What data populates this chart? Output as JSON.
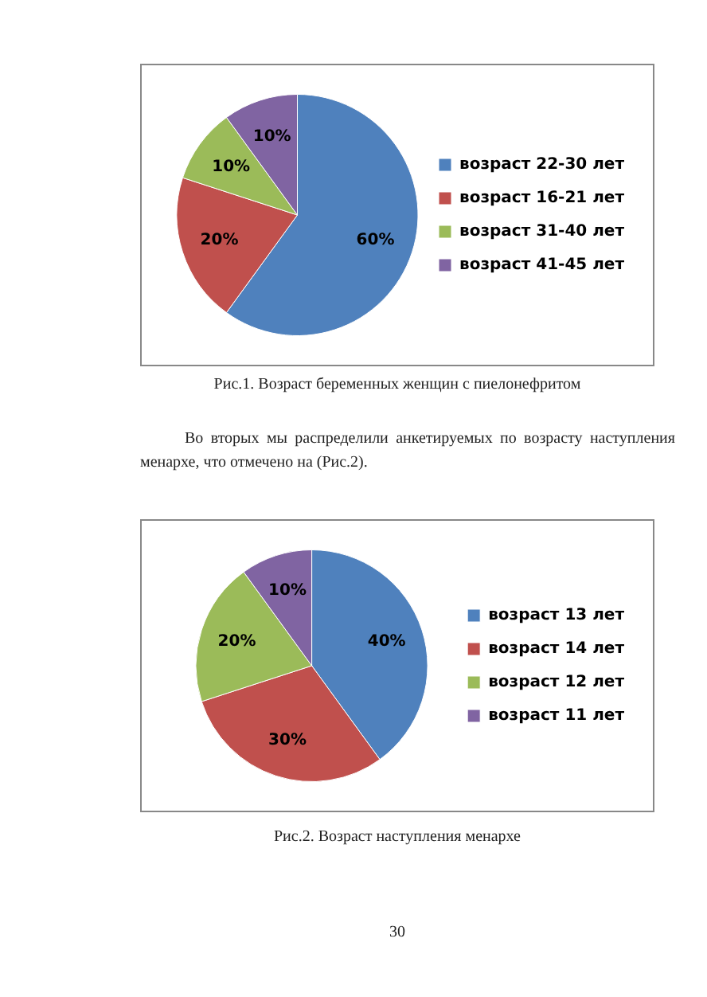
{
  "chart_data": [
    {
      "type": "pie",
      "categories": [
        "возраст 22-30 лет",
        "возраст 16-21 лет",
        "возраст 31-40 лет",
        "возраст 41-45 лет"
      ],
      "values": [
        60,
        20,
        10,
        10
      ],
      "colors": [
        "#4f81bd",
        "#c0504d",
        "#9bbb59",
        "#8064a2"
      ],
      "value_labels": [
        "60%",
        "20%",
        "10%",
        "10%"
      ],
      "legend": "right",
      "annotations": [
        "Рис.1. Возраст беременных женщин с пиелонефритом"
      ]
    },
    {
      "type": "pie",
      "categories": [
        "возраст 13 лет",
        "возраст 14 лет",
        "возраст 12 лет",
        "возраст 11 лет"
      ],
      "values": [
        40,
        30,
        20,
        10
      ],
      "colors": [
        "#4f81bd",
        "#c0504d",
        "#9bbb59",
        "#8064a2"
      ],
      "value_labels": [
        "40%",
        "30%",
        "20%",
        "10%"
      ],
      "legend": "right",
      "annotations": [
        "Во вторых мы распределили  анкетируемых по возрасту наступления менархе, что  отмечено на (Рис.2).",
        "Рис.2. Возраст наступления менархе",
        "30"
      ]
    }
  ]
}
